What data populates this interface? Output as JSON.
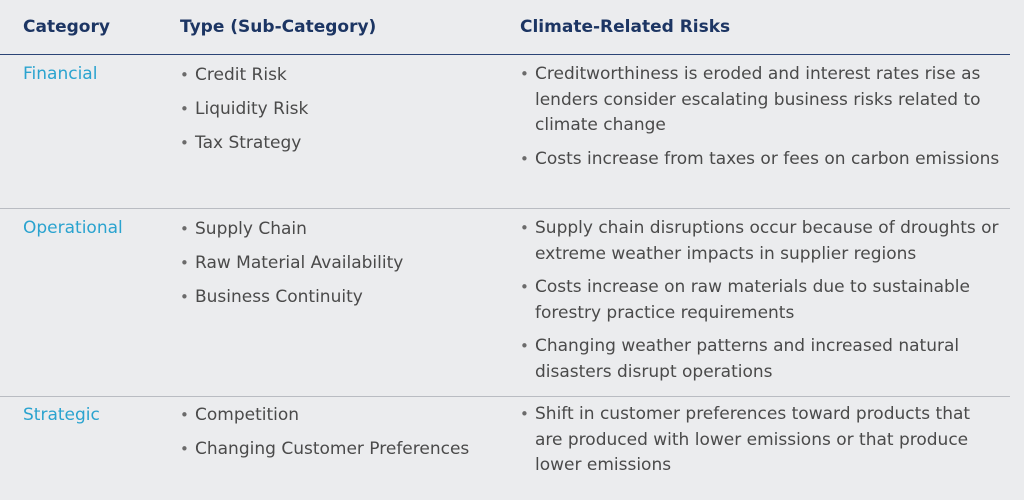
{
  "header": {
    "category": "Category",
    "type": "Type (Sub-Category)",
    "risks": "Climate-Related Risks"
  },
  "rows": [
    {
      "category": "Financial",
      "types": [
        "Credit Risk",
        "Liquidity Risk",
        "Tax Strategy"
      ],
      "risks": [
        "Creditworthiness is eroded and interest rates rise as lenders consider escalating business risks related to climate change",
        "Costs increase from taxes or fees on carbon emissions"
      ]
    },
    {
      "category": "Operational",
      "types": [
        "Supply Chain",
        "Raw Material Availability",
        "Business Continuity"
      ],
      "risks": [
        "Supply chain disruptions occur because of droughts or extreme weather impacts in supplier regions",
        "Costs increase on raw materials due to sustainable forestry practice requirements",
        "Changing weather patterns and increased natural disasters disrupt operations"
      ]
    },
    {
      "category": "Strategic",
      "types": [
        "Competition",
        "Changing Customer Preferences"
      ],
      "risks": [
        "Shift in customer preferences toward products that are produced with lower emissions or that produce lower emissions"
      ]
    }
  ],
  "bullet": "•",
  "colors": {
    "background": "#ebecee",
    "header_text": "#1c3563",
    "category_text": "#2aa3cf",
    "body_text": "#4a4a4a",
    "header_rule": "#2b4476",
    "row_divider": "#b9bcc2"
  }
}
